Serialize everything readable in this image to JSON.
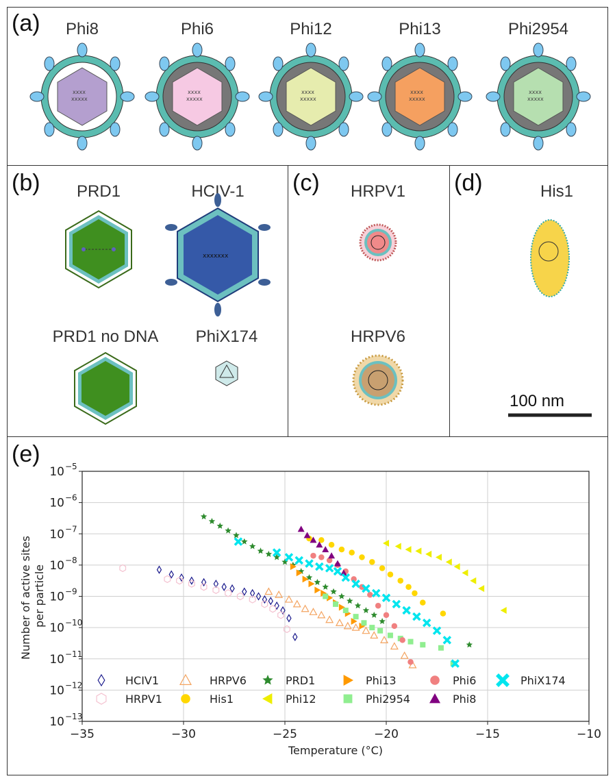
{
  "panels": {
    "a": {
      "label": "(a)",
      "viruses": [
        "Phi8",
        "Phi6",
        "Phi12",
        "Phi13",
        "Phi2954"
      ]
    },
    "b": {
      "label": "(b)",
      "viruses": [
        "PRD1",
        "HCIV-1",
        "PRD1 no DNA",
        "PhiX174"
      ]
    },
    "c": {
      "label": "(c)",
      "viruses": [
        "HRPV1",
        "HRPV6"
      ]
    },
    "d": {
      "label": "(d)",
      "viruses": [
        "His1"
      ],
      "scale_bar": "100 nm"
    },
    "e": {
      "label": "(e)"
    }
  },
  "colors": {
    "HCIV1": "#1a1a8c",
    "HRPV6": "#f4a460",
    "PRD1": "#2e8b2e",
    "Phi13": "#ff9a00",
    "Phi6": "#f08080",
    "PhiX174": "#00e5ee",
    "HRPV1": "#f4c2d0",
    "His1": "#ffd700",
    "Phi12": "#eeee00",
    "Phi2954": "#90ee90",
    "Phi8": "#800080"
  },
  "chart_data": {
    "type": "scatter",
    "xlabel": "Temperature ($^\\circ$C)",
    "ylabel": "Number of active sites per particle",
    "xlim": [
      -35,
      -10
    ],
    "ylim_log10": [
      -13,
      -5
    ],
    "yscale": "log",
    "x_ticks": [
      "−35",
      "−30",
      "−25",
      "−20",
      "−15",
      "−10"
    ],
    "y_tick_exponents": [
      "−13",
      "−12",
      "−11",
      "−10",
      "−9",
      "−8",
      "−7",
      "−6",
      "−5"
    ],
    "grid": true,
    "legend_position": "lower-left",
    "series": [
      {
        "name": "HCIV1",
        "marker": "diamond-open",
        "x": [
          -31.2,
          -30.6,
          -30.1,
          -29.6,
          -29.0,
          -28.4,
          -28.0,
          -27.6,
          -27.0,
          -26.6,
          -26.3,
          -26.0,
          -25.7,
          -25.4,
          -25.1,
          -24.8,
          -24.5
        ],
        "log10y": [
          -8.15,
          -8.3,
          -8.4,
          -8.5,
          -8.55,
          -8.6,
          -8.7,
          -8.75,
          -8.85,
          -8.9,
          -9.0,
          -9.1,
          -9.15,
          -9.3,
          -9.45,
          -9.7,
          -10.3
        ]
      },
      {
        "name": "HRPV1",
        "marker": "hexagon-open",
        "x": [
          -33.0,
          -30.8,
          -30.2,
          -29.6,
          -29.0,
          -28.4,
          -27.8,
          -27.2,
          -26.6,
          -26.0,
          -25.6,
          -25.2,
          -24.9
        ],
        "log10y": [
          -8.1,
          -8.45,
          -8.5,
          -8.6,
          -8.7,
          -8.8,
          -8.9,
          -9.0,
          -9.1,
          -9.25,
          -9.4,
          -9.6,
          -10.05
        ]
      },
      {
        "name": "HRPV6",
        "marker": "triangle-open",
        "x": [
          -25.8,
          -25.3,
          -24.8,
          -24.4,
          -24.0,
          -23.6,
          -23.2,
          -22.8,
          -22.3,
          -21.9,
          -21.5,
          -21.0,
          -20.6,
          -20.1,
          -19.6,
          -19.1,
          -18.7
        ],
        "log10y": [
          -8.85,
          -8.95,
          -9.1,
          -9.25,
          -9.4,
          -9.5,
          -9.6,
          -9.75,
          -9.85,
          -9.95,
          -10.0,
          -10.1,
          -10.25,
          -10.4,
          -10.6,
          -10.9,
          -11.2
        ]
      },
      {
        "name": "His1",
        "marker": "circle",
        "x": [
          -23.8,
          -23.2,
          -22.7,
          -22.2,
          -21.7,
          -21.2,
          -20.7,
          -20.2,
          -19.8,
          -19.3,
          -18.9,
          -18.6,
          -18.2,
          -17.2
        ],
        "log10y": [
          -7.15,
          -7.2,
          -7.35,
          -7.5,
          -7.6,
          -7.75,
          -7.9,
          -8.1,
          -8.3,
          -8.5,
          -8.7,
          -8.9,
          -9.2,
          -9.55
        ]
      },
      {
        "name": "PRD1",
        "marker": "star",
        "x": [
          -29.0,
          -28.6,
          -28.2,
          -27.8,
          -27.4,
          -27.0,
          -26.6,
          -26.2,
          -25.8,
          -25.4,
          -25.0,
          -24.6,
          -24.2,
          -23.8,
          -23.4,
          -23.0,
          -22.6,
          -22.2,
          -21.8,
          -21.4,
          -21.0,
          -20.6,
          -20.2,
          -15.9
        ],
        "log10y": [
          -6.45,
          -6.6,
          -6.75,
          -6.9,
          -7.05,
          -7.25,
          -7.4,
          -7.55,
          -7.65,
          -7.75,
          -7.9,
          -8.0,
          -8.2,
          -8.4,
          -8.55,
          -8.7,
          -8.85,
          -9.0,
          -9.15,
          -9.3,
          -9.45,
          -9.6,
          -9.8,
          -10.55
        ]
      },
      {
        "name": "Phi12",
        "marker": "triangle-left",
        "x": [
          -20.0,
          -19.4,
          -18.9,
          -18.4,
          -17.9,
          -17.4,
          -16.9,
          -16.5,
          -16.1,
          -15.7,
          -15.3,
          -14.2
        ],
        "log10y": [
          -7.3,
          -7.4,
          -7.5,
          -7.55,
          -7.65,
          -7.75,
          -7.9,
          -8.05,
          -8.25,
          -8.5,
          -8.75,
          -9.45
        ]
      },
      {
        "name": "Phi13",
        "marker": "triangle-right",
        "x": [
          -24.6,
          -24.3,
          -24.0,
          -23.7,
          -23.4,
          -23.1,
          -22.8,
          -22.5,
          -22.2,
          -21.9,
          -21.6,
          -21.2
        ],
        "log10y": [
          -8.05,
          -8.25,
          -8.45,
          -8.6,
          -8.8,
          -8.9,
          -9.05,
          -9.2,
          -9.35,
          -9.55,
          -9.8,
          -9.95
        ]
      },
      {
        "name": "Phi2954",
        "marker": "square",
        "x": [
          -23.0,
          -22.5,
          -22.0,
          -21.5,
          -21.1,
          -20.7,
          -20.3,
          -19.8,
          -19.3,
          -18.8,
          -18.2,
          -17.3,
          -16.7
        ],
        "log10y": [
          -9.0,
          -9.25,
          -9.45,
          -9.65,
          -9.85,
          -10.0,
          -10.1,
          -10.25,
          -10.35,
          -10.45,
          -10.55,
          -10.65,
          -11.15
        ]
      },
      {
        "name": "Phi6",
        "marker": "circle",
        "x": [
          -23.6,
          -23.2,
          -22.8,
          -22.4,
          -22.0,
          -21.6,
          -21.2,
          -20.8,
          -20.4,
          -20.0,
          -19.6,
          -19.2,
          -18.8
        ],
        "log10y": [
          -7.7,
          -7.75,
          -7.85,
          -8.0,
          -8.2,
          -8.45,
          -8.7,
          -8.95,
          -9.3,
          -9.6,
          -9.95,
          -10.4,
          -11.1
        ]
      },
      {
        "name": "Phi8",
        "marker": "triangle",
        "x": [
          -24.2,
          -23.9,
          -23.6,
          -23.3,
          -23.0,
          -22.7,
          -22.4,
          -22.1
        ],
        "log10y": [
          -6.85,
          -7.05,
          -7.2,
          -7.35,
          -7.5,
          -7.7,
          -7.95,
          -8.25
        ]
      },
      {
        "name": "PhiX174",
        "marker": "x",
        "x": [
          -27.3,
          -25.4,
          -24.8,
          -24.3,
          -23.8,
          -23.3,
          -22.8,
          -22.4,
          -22.0,
          -21.5,
          -21.0,
          -20.5,
          -20.0,
          -19.5,
          -19.0,
          -18.5,
          -18.0,
          -17.5,
          -17.0,
          -16.6
        ],
        "log10y": [
          -7.25,
          -7.6,
          -7.75,
          -7.85,
          -7.95,
          -8.05,
          -8.1,
          -8.2,
          -8.4,
          -8.6,
          -8.75,
          -8.9,
          -9.05,
          -9.25,
          -9.45,
          -9.65,
          -9.85,
          -10.1,
          -10.4,
          -11.15
        ]
      }
    ]
  }
}
